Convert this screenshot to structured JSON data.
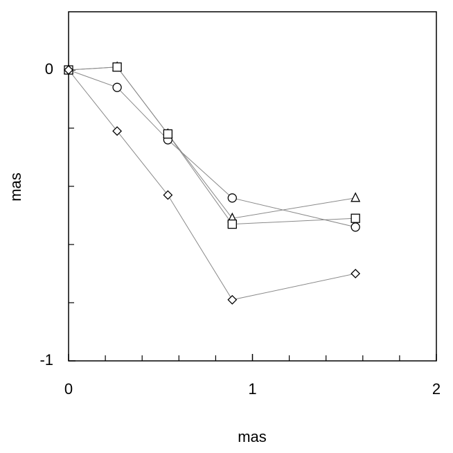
{
  "chart_data": {
    "type": "line",
    "xlabel": "mas",
    "ylabel": "mas",
    "x": [
      0,
      0.264,
      0.54,
      0.89,
      1.56
    ],
    "series": [
      {
        "marker": "circle",
        "color": "#888888",
        "values": [
          0,
          -0.06,
          -0.24,
          -0.44,
          -0.54
        ]
      },
      {
        "marker": "triangle",
        "color": "#888888",
        "values": [
          0,
          0.01,
          -0.22,
          -0.51,
          -0.44
        ]
      },
      {
        "marker": "square",
        "color": "#888888",
        "values": [
          0,
          0.01,
          -0.22,
          -0.53,
          -0.51
        ]
      },
      {
        "marker": "diamond",
        "color": "#888888",
        "values": [
          0,
          -0.21,
          -0.43,
          -0.79,
          -0.7
        ]
      }
    ],
    "xlim": [
      0,
      2
    ],
    "ylim": [
      -1,
      0.2
    ],
    "xticks": [
      0,
      1,
      2
    ],
    "yticks": [
      0,
      -1
    ],
    "xminorticks": [
      0.2,
      0.4,
      0.6,
      0.8,
      1.2,
      1.4,
      1.6,
      1.8
    ],
    "yminorticks": [
      -0.2,
      -0.4,
      -0.6,
      -0.8
    ]
  }
}
